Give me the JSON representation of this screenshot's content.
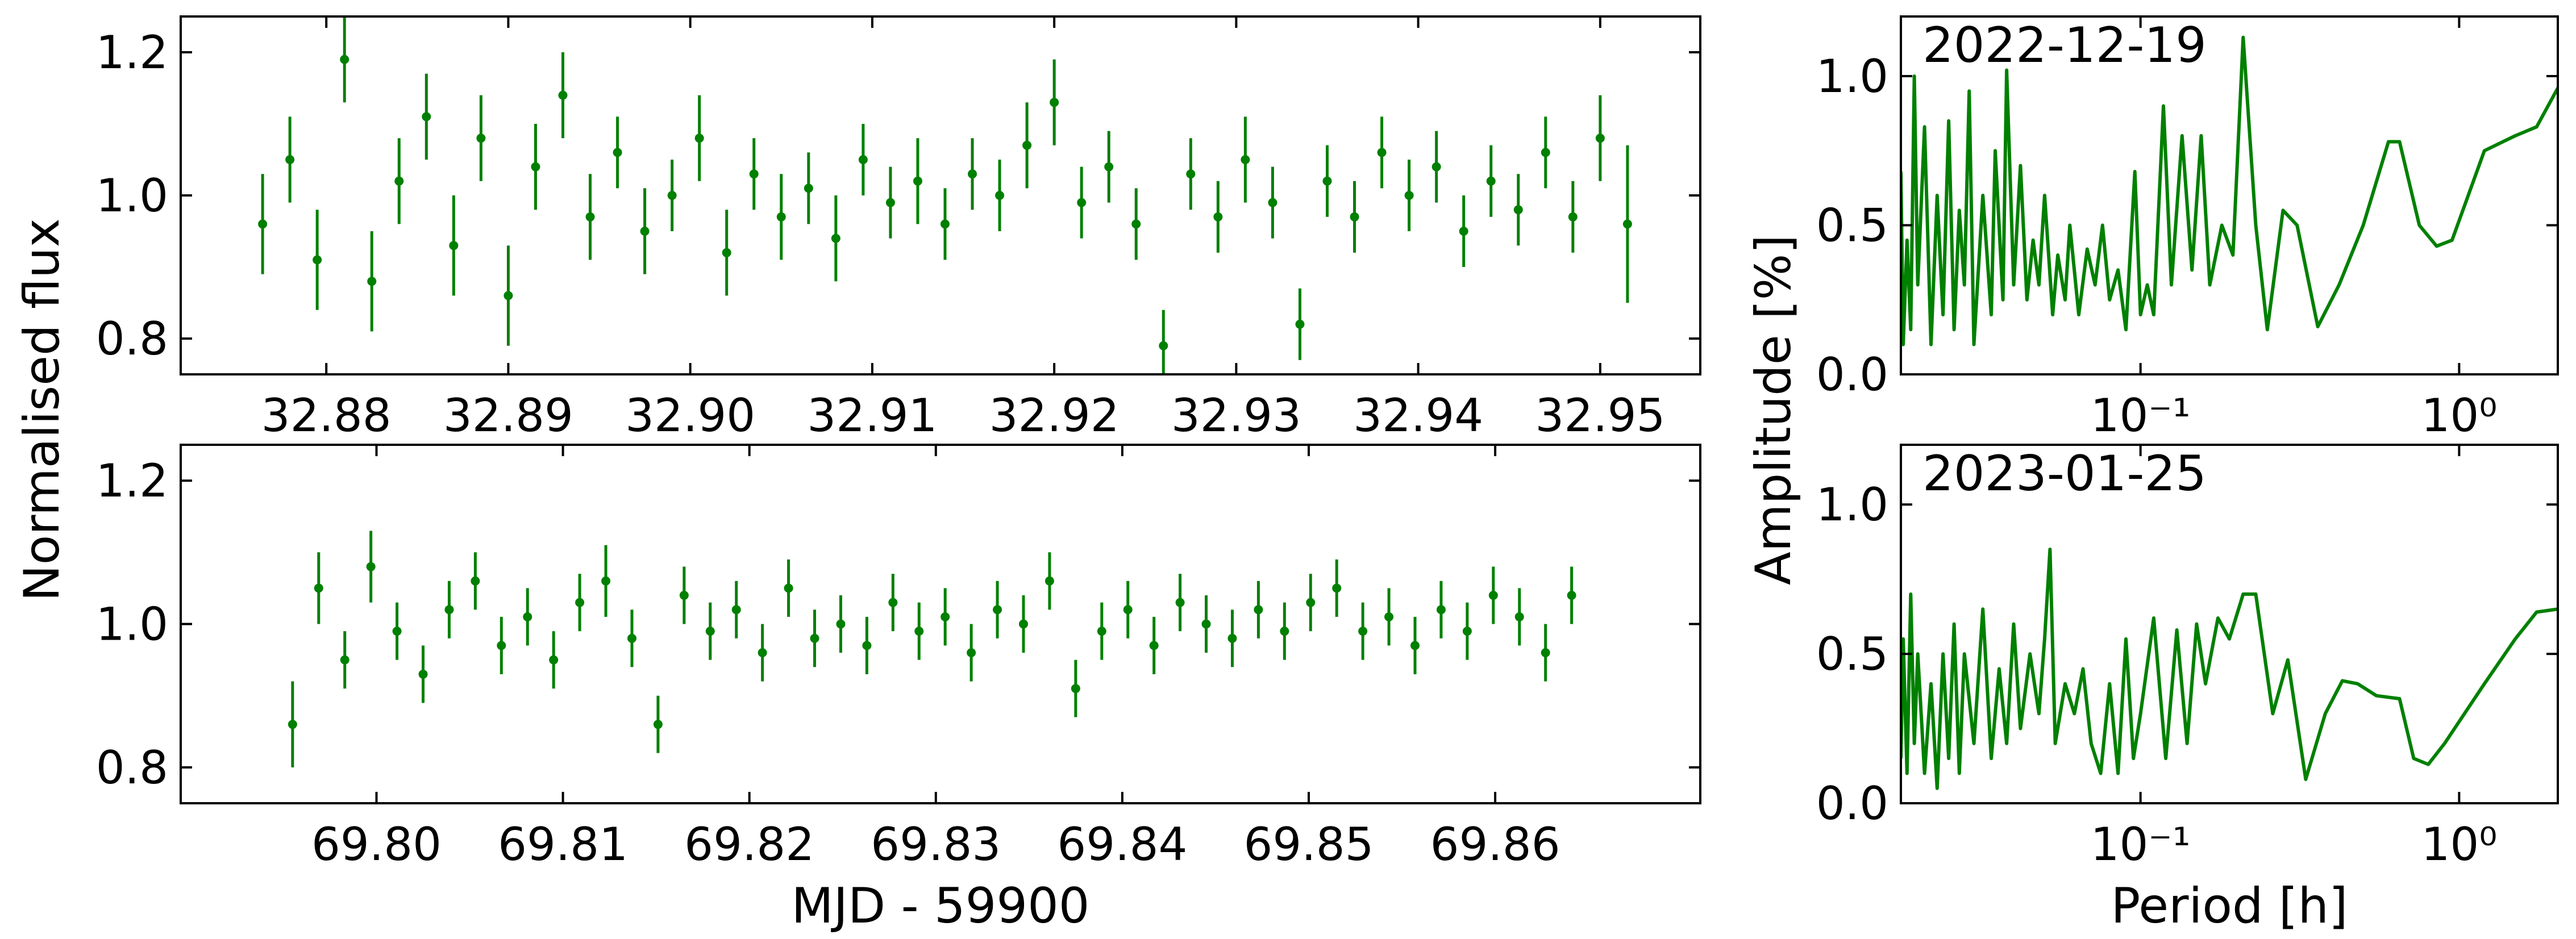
{
  "chart_data": [
    {
      "type": "errorbar",
      "ylabel": "Normalised flux",
      "color": "#008000",
      "xlim": [
        32.872,
        32.9555
      ],
      "ylim": [
        0.75,
        1.25
      ],
      "xticks": [
        {
          "value": 32.88,
          "label": "32.88"
        },
        {
          "value": 32.89,
          "label": "32.89"
        },
        {
          "value": 32.9,
          "label": "32.90"
        },
        {
          "value": 32.91,
          "label": "32.91"
        },
        {
          "value": 32.92,
          "label": "32.92"
        },
        {
          "value": 32.93,
          "label": "32.93"
        },
        {
          "value": 32.94,
          "label": "32.94"
        },
        {
          "value": 32.95,
          "label": "32.95"
        }
      ],
      "yticks": [
        0.8,
        {
          "value": 1,
          "label": "1.0"
        },
        1.2
      ],
      "x": [
        32.8765,
        32.878,
        32.8795,
        32.881,
        32.8825,
        32.884,
        32.8855,
        32.887,
        32.8885,
        32.89,
        32.8915,
        32.893,
        32.8945,
        32.896,
        32.8975,
        32.899,
        32.9005,
        32.902,
        32.9035,
        32.905,
        32.9065,
        32.908,
        32.9095,
        32.911,
        32.9125,
        32.914,
        32.9155,
        32.917,
        32.9185,
        32.92,
        32.9215,
        32.923,
        32.9245,
        32.926,
        32.9275,
        32.929,
        32.9305,
        32.932,
        32.9335,
        32.935,
        32.9365,
        32.938,
        32.9395,
        32.941,
        32.9425,
        32.944,
        32.9455,
        32.947,
        32.9485,
        32.95,
        32.9515
      ],
      "values": [
        0.96,
        1.05,
        0.91,
        1.19,
        0.88,
        1.02,
        1.11,
        0.93,
        1.08,
        0.86,
        1.04,
        1.14,
        0.97,
        1.06,
        0.95,
        1.0,
        1.08,
        0.92,
        1.03,
        0.97,
        1.01,
        0.94,
        1.05,
        0.99,
        1.02,
        0.96,
        1.03,
        1.0,
        1.07,
        1.13,
        0.99,
        1.04,
        0.96,
        0.79,
        1.03,
        0.97,
        1.05,
        0.99,
        0.82,
        1.02,
        0.97,
        1.06,
        1.0,
        1.04,
        0.95,
        1.02,
        0.98,
        1.06,
        0.97,
        1.08,
        0.96
      ],
      "errors": [
        0.07,
        0.06,
        0.07,
        0.06,
        0.07,
        0.06,
        0.06,
        0.07,
        0.06,
        0.07,
        0.06,
        0.06,
        0.06,
        0.05,
        0.06,
        0.05,
        0.06,
        0.06,
        0.05,
        0.06,
        0.05,
        0.06,
        0.05,
        0.05,
        0.06,
        0.05,
        0.05,
        0.05,
        0.06,
        0.06,
        0.05,
        0.05,
        0.05,
        0.05,
        0.05,
        0.05,
        0.06,
        0.05,
        0.05,
        0.05,
        0.05,
        0.05,
        0.05,
        0.05,
        0.05,
        0.05,
        0.05,
        0.05,
        0.05,
        0.06,
        0.11
      ]
    },
    {
      "type": "errorbar",
      "xlabel": "MJD - 59900",
      "color": "#008000",
      "xlim": [
        69.7895,
        69.871
      ],
      "ylim": [
        0.75,
        1.25
      ],
      "xticks": [
        {
          "value": 69.8,
          "label": "69.80"
        },
        {
          "value": 69.81,
          "label": "69.81"
        },
        {
          "value": 69.82,
          "label": "69.82"
        },
        {
          "value": 69.83,
          "label": "69.83"
        },
        {
          "value": 69.84,
          "label": "69.84"
        },
        {
          "value": 69.85,
          "label": "69.85"
        },
        {
          "value": 69.86,
          "label": "69.86"
        }
      ],
      "yticks": [
        0.8,
        {
          "value": 1,
          "label": "1.0"
        },
        1.2
      ],
      "x": [
        69.7955,
        69.7969,
        69.7983,
        69.7997,
        69.8011,
        69.8025,
        69.8039,
        69.8053,
        69.8067,
        69.8081,
        69.8095,
        69.8109,
        69.8123,
        69.8137,
        69.8151,
        69.8165,
        69.8179,
        69.8193,
        69.8207,
        69.8221,
        69.8235,
        69.8249,
        69.8263,
        69.8277,
        69.8291,
        69.8305,
        69.8319,
        69.8333,
        69.8347,
        69.8361,
        69.8375,
        69.8389,
        69.8403,
        69.8417,
        69.8431,
        69.8445,
        69.8459,
        69.8473,
        69.8487,
        69.8501,
        69.8515,
        69.8529,
        69.8543,
        69.8557,
        69.8571,
        69.8585,
        69.8599,
        69.8613,
        69.8627,
        69.8641
      ],
      "values": [
        0.86,
        1.05,
        0.95,
        1.08,
        0.99,
        0.93,
        1.02,
        1.06,
        0.97,
        1.01,
        0.95,
        1.03,
        1.06,
        0.98,
        0.86,
        1.04,
        0.99,
        1.02,
        0.96,
        1.05,
        0.98,
        1.0,
        0.97,
        1.03,
        0.99,
        1.01,
        0.96,
        1.02,
        1.0,
        1.06,
        0.91,
        0.99,
        1.02,
        0.97,
        1.03,
        1.0,
        0.98,
        1.02,
        0.99,
        1.03,
        1.05,
        0.99,
        1.01,
        0.97,
        1.02,
        0.99,
        1.04,
        1.01,
        0.96,
        1.04
      ],
      "errors": [
        0.06,
        0.05,
        0.04,
        0.05,
        0.04,
        0.04,
        0.04,
        0.04,
        0.04,
        0.04,
        0.04,
        0.04,
        0.05,
        0.04,
        0.04,
        0.04,
        0.04,
        0.04,
        0.04,
        0.04,
        0.04,
        0.04,
        0.04,
        0.04,
        0.04,
        0.04,
        0.04,
        0.04,
        0.04,
        0.04,
        0.04,
        0.04,
        0.04,
        0.04,
        0.04,
        0.04,
        0.04,
        0.04,
        0.04,
        0.04,
        0.04,
        0.04,
        0.04,
        0.04,
        0.04,
        0.04,
        0.04,
        0.04,
        0.04,
        0.04
      ]
    },
    {
      "type": "line",
      "ylabel": "Amplitude [%]",
      "annotation": "2022-12-19",
      "color": "#008000",
      "xscale": "log",
      "xlim": [
        0.0177,
        2.04
      ],
      "ylim": [
        0,
        1.2
      ],
      "xticks": [
        {
          "value": 0.1,
          "label": "10⁻¹"
        },
        {
          "value": 1,
          "label": "10⁰"
        }
      ],
      "yticks": [
        {
          "value": 0,
          "label": "0.0"
        },
        0.5,
        {
          "value": 1,
          "label": "1.0"
        }
      ],
      "x": [
        0.0177,
        0.018,
        0.0185,
        0.019,
        0.0195,
        0.02,
        0.021,
        0.022,
        0.023,
        0.024,
        0.025,
        0.026,
        0.027,
        0.028,
        0.029,
        0.03,
        0.032,
        0.034,
        0.035,
        0.037,
        0.038,
        0.04,
        0.042,
        0.044,
        0.046,
        0.048,
        0.05,
        0.053,
        0.055,
        0.058,
        0.06,
        0.064,
        0.068,
        0.072,
        0.076,
        0.08,
        0.085,
        0.09,
        0.096,
        0.1,
        0.105,
        0.11,
        0.118,
        0.125,
        0.135,
        0.145,
        0.155,
        0.165,
        0.18,
        0.195,
        0.21,
        0.23,
        0.25,
        0.28,
        0.31,
        0.36,
        0.42,
        0.5,
        0.6,
        0.65,
        0.75,
        0.85,
        0.95,
        1.2,
        1.5,
        1.75,
        2.04
      ],
      "values": [
        0.68,
        0.1,
        0.45,
        0.15,
        1.0,
        0.3,
        0.83,
        0.1,
        0.6,
        0.2,
        0.85,
        0.15,
        0.55,
        0.3,
        0.95,
        0.1,
        0.6,
        0.2,
        0.75,
        0.25,
        1.02,
        0.3,
        0.7,
        0.25,
        0.45,
        0.3,
        0.6,
        0.2,
        0.4,
        0.25,
        0.5,
        0.2,
        0.42,
        0.3,
        0.5,
        0.25,
        0.35,
        0.15,
        0.68,
        0.2,
        0.3,
        0.2,
        0.9,
        0.3,
        0.8,
        0.35,
        0.8,
        0.3,
        0.5,
        0.4,
        1.13,
        0.5,
        0.15,
        0.55,
        0.5,
        0.16,
        0.3,
        0.5,
        0.78,
        0.78,
        0.5,
        0.43,
        0.45,
        0.75,
        0.8,
        0.83,
        0.96
      ]
    },
    {
      "type": "line",
      "xlabel": "Period [h]",
      "annotation": "2023-01-25",
      "color": "#008000",
      "xscale": "log",
      "xlim": [
        0.0177,
        2.04
      ],
      "ylim": [
        0,
        1.2
      ],
      "xticks": [
        {
          "value": 0.1,
          "label": "10⁻¹"
        },
        {
          "value": 1,
          "label": "10⁰"
        }
      ],
      "yticks": [
        {
          "value": 0,
          "label": "0.0"
        },
        0.5,
        {
          "value": 1,
          "label": "1.0"
        }
      ],
      "x": [
        0.0177,
        0.018,
        0.0185,
        0.019,
        0.0195,
        0.02,
        0.021,
        0.022,
        0.023,
        0.024,
        0.025,
        0.026,
        0.027,
        0.028,
        0.03,
        0.032,
        0.034,
        0.036,
        0.038,
        0.04,
        0.042,
        0.045,
        0.048,
        0.05,
        0.052,
        0.054,
        0.058,
        0.062,
        0.066,
        0.07,
        0.075,
        0.08,
        0.085,
        0.09,
        0.095,
        0.1,
        0.11,
        0.12,
        0.13,
        0.14,
        0.15,
        0.16,
        0.175,
        0.19,
        0.21,
        0.23,
        0.26,
        0.29,
        0.33,
        0.38,
        0.43,
        0.48,
        0.55,
        0.65,
        0.72,
        0.8,
        0.9,
        1.2,
        1.5,
        1.75,
        2.04
      ],
      "values": [
        0.15,
        0.55,
        0.1,
        0.7,
        0.2,
        0.5,
        0.1,
        0.4,
        0.05,
        0.5,
        0.15,
        0.6,
        0.1,
        0.5,
        0.2,
        0.65,
        0.15,
        0.45,
        0.2,
        0.6,
        0.25,
        0.5,
        0.3,
        0.55,
        0.85,
        0.2,
        0.4,
        0.3,
        0.45,
        0.2,
        0.1,
        0.4,
        0.1,
        0.55,
        0.15,
        0.3,
        0.62,
        0.15,
        0.58,
        0.2,
        0.6,
        0.4,
        0.62,
        0.55,
        0.7,
        0.7,
        0.3,
        0.48,
        0.08,
        0.3,
        0.41,
        0.4,
        0.36,
        0.35,
        0.15,
        0.13,
        0.2,
        0.4,
        0.55,
        0.64,
        0.65
      ]
    }
  ]
}
